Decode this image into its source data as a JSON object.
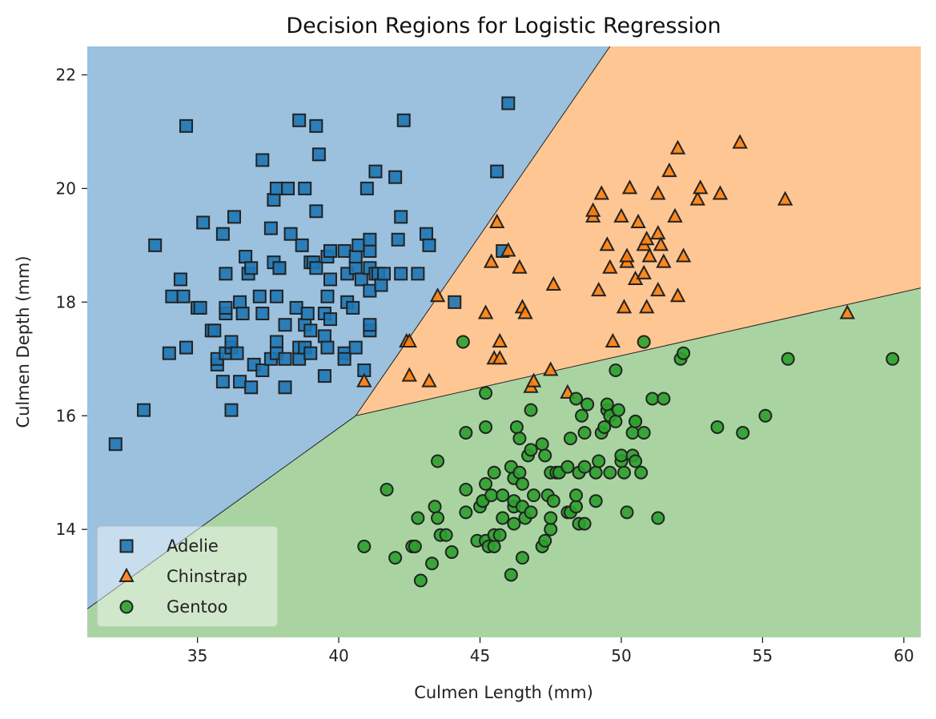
{
  "chart_data": {
    "type": "scatter",
    "title": "Decision Regions for Logistic Regression",
    "xlabel": "Culmen Length (mm)",
    "ylabel": "Culmen Depth (mm)",
    "xlim": [
      31.1,
      60.6
    ],
    "ylim": [
      12.1,
      22.5
    ],
    "xticks": [
      35,
      40,
      45,
      50,
      55,
      60
    ],
    "yticks": [
      14,
      16,
      18,
      20,
      22
    ],
    "grid": false,
    "legend_position": "bottom-left",
    "regions": [
      {
        "class": "Adelie",
        "color": "#9bc1de"
      },
      {
        "class": "Chinstrap",
        "color": "#fec693"
      },
      {
        "class": "Gentoo",
        "color": "#a9d4a2"
      }
    ],
    "boundaries": [
      {
        "between": [
          "Adelie",
          "Gentoo"
        ],
        "points": [
          [
            31.1,
            12.6
          ],
          [
            40.6,
            16.0
          ]
        ]
      },
      {
        "between": [
          "Adelie",
          "Chinstrap"
        ],
        "points": [
          [
            40.6,
            16.0
          ],
          [
            49.6,
            22.5
          ]
        ]
      },
      {
        "between": [
          "Chinstrap",
          "Gentoo"
        ],
        "points": [
          [
            40.6,
            16.0
          ],
          [
            60.6,
            18.25
          ]
        ]
      }
    ],
    "series": [
      {
        "name": "Adelie",
        "marker": "square",
        "color": "#1f77b4",
        "points": [
          [
            32.1,
            15.5
          ],
          [
            33.1,
            16.1
          ],
          [
            33.5,
            19.0
          ],
          [
            34.0,
            17.1
          ],
          [
            34.1,
            18.1
          ],
          [
            34.4,
            18.4
          ],
          [
            34.5,
            18.1
          ],
          [
            34.6,
            17.2
          ],
          [
            34.6,
            21.1
          ],
          [
            35.0,
            17.9
          ],
          [
            35.1,
            17.9
          ],
          [
            35.2,
            19.4
          ],
          [
            35.5,
            17.5
          ],
          [
            35.6,
            17.5
          ],
          [
            35.7,
            16.9
          ],
          [
            35.7,
            17.0
          ],
          [
            35.9,
            16.6
          ],
          [
            35.9,
            19.2
          ],
          [
            36.0,
            17.1
          ],
          [
            36.0,
            17.8
          ],
          [
            36.0,
            17.9
          ],
          [
            36.0,
            18.5
          ],
          [
            36.2,
            16.1
          ],
          [
            36.2,
            17.2
          ],
          [
            36.2,
            17.3
          ],
          [
            36.3,
            19.5
          ],
          [
            36.4,
            17.1
          ],
          [
            36.5,
            16.6
          ],
          [
            36.5,
            18.0
          ],
          [
            36.6,
            17.8
          ],
          [
            36.7,
            18.8
          ],
          [
            36.8,
            18.5
          ],
          [
            36.9,
            18.6
          ],
          [
            36.9,
            16.5
          ],
          [
            37.0,
            16.9
          ],
          [
            37.2,
            18.1
          ],
          [
            37.3,
            16.8
          ],
          [
            37.3,
            17.8
          ],
          [
            37.3,
            20.5
          ],
          [
            37.6,
            19.3
          ],
          [
            37.6,
            17.0
          ],
          [
            37.7,
            18.7
          ],
          [
            37.7,
            19.8
          ],
          [
            37.8,
            17.3
          ],
          [
            37.8,
            18.1
          ],
          [
            37.8,
            20.0
          ],
          [
            37.8,
            17.1
          ],
          [
            37.9,
            18.6
          ],
          [
            37.9,
            18.6
          ],
          [
            38.1,
            16.5
          ],
          [
            38.1,
            17.0
          ],
          [
            38.1,
            17.6
          ],
          [
            38.2,
            20.0
          ],
          [
            38.3,
            19.2
          ],
          [
            38.5,
            17.9
          ],
          [
            38.6,
            17.0
          ],
          [
            38.6,
            17.2
          ],
          [
            38.6,
            21.2
          ],
          [
            38.7,
            19.0
          ],
          [
            38.8,
            17.2
          ],
          [
            38.8,
            17.6
          ],
          [
            38.8,
            20.0
          ],
          [
            38.9,
            17.8
          ],
          [
            39.0,
            17.1
          ],
          [
            39.0,
            17.5
          ],
          [
            39.0,
            18.7
          ],
          [
            39.1,
            18.7
          ],
          [
            39.2,
            18.6
          ],
          [
            39.2,
            19.6
          ],
          [
            39.2,
            21.1
          ],
          [
            39.3,
            20.6
          ],
          [
            39.5,
            16.7
          ],
          [
            39.5,
            17.4
          ],
          [
            39.5,
            17.8
          ],
          [
            39.6,
            17.2
          ],
          [
            39.6,
            18.8
          ],
          [
            39.6,
            18.1
          ],
          [
            39.7,
            17.7
          ],
          [
            39.7,
            18.4
          ],
          [
            39.7,
            18.9
          ],
          [
            40.2,
            17.1
          ],
          [
            40.2,
            18.9
          ],
          [
            40.2,
            17.0
          ],
          [
            40.3,
            18.0
          ],
          [
            40.3,
            18.5
          ],
          [
            40.5,
            17.9
          ],
          [
            40.6,
            17.2
          ],
          [
            40.6,
            18.6
          ],
          [
            40.6,
            18.8
          ],
          [
            40.7,
            19.0
          ],
          [
            40.8,
            18.4
          ],
          [
            40.9,
            16.8
          ],
          [
            41.0,
            20.0
          ],
          [
            41.1,
            17.5
          ],
          [
            41.1,
            17.6
          ],
          [
            41.1,
            18.2
          ],
          [
            41.1,
            18.6
          ],
          [
            41.1,
            18.9
          ],
          [
            41.1,
            19.1
          ],
          [
            41.3,
            18.5
          ],
          [
            41.3,
            20.3
          ],
          [
            41.4,
            18.5
          ],
          [
            41.5,
            18.3
          ],
          [
            41.6,
            18.5
          ],
          [
            42.0,
            20.2
          ],
          [
            42.1,
            19.1
          ],
          [
            42.2,
            18.5
          ],
          [
            42.2,
            19.5
          ],
          [
            42.3,
            21.2
          ],
          [
            42.8,
            18.5
          ],
          [
            43.1,
            19.2
          ],
          [
            43.2,
            19.0
          ],
          [
            44.1,
            18.0
          ],
          [
            45.8,
            18.9
          ],
          [
            46.0,
            21.5
          ],
          [
            45.6,
            20.3
          ]
        ]
      },
      {
        "name": "Chinstrap",
        "marker": "triangle",
        "color": "#ff7f0e",
        "points": [
          [
            40.9,
            16.6
          ],
          [
            42.4,
            17.3
          ],
          [
            42.5,
            16.7
          ],
          [
            42.5,
            17.3
          ],
          [
            43.2,
            16.6
          ],
          [
            43.5,
            18.1
          ],
          [
            45.2,
            17.8
          ],
          [
            45.4,
            18.7
          ],
          [
            45.5,
            17.0
          ],
          [
            45.6,
            19.4
          ],
          [
            45.7,
            17.0
          ],
          [
            45.7,
            17.3
          ],
          [
            46.0,
            18.9
          ],
          [
            46.4,
            18.6
          ],
          [
            46.5,
            17.9
          ],
          [
            46.6,
            17.8
          ],
          [
            46.8,
            16.5
          ],
          [
            46.9,
            16.6
          ],
          [
            47.5,
            16.8
          ],
          [
            47.6,
            18.3
          ],
          [
            48.1,
            16.4
          ],
          [
            49.0,
            19.5
          ],
          [
            49.0,
            19.6
          ],
          [
            49.2,
            18.2
          ],
          [
            49.3,
            19.9
          ],
          [
            49.5,
            19.0
          ],
          [
            49.6,
            18.6
          ],
          [
            49.7,
            17.3
          ],
          [
            50.0,
            19.5
          ],
          [
            50.1,
            17.9
          ],
          [
            50.2,
            18.7
          ],
          [
            50.2,
            18.8
          ],
          [
            50.3,
            20.0
          ],
          [
            50.5,
            18.4
          ],
          [
            50.6,
            19.4
          ],
          [
            50.8,
            18.5
          ],
          [
            50.8,
            19.0
          ],
          [
            50.9,
            17.9
          ],
          [
            50.9,
            19.1
          ],
          [
            51.0,
            18.8
          ],
          [
            51.3,
            18.2
          ],
          [
            51.3,
            19.2
          ],
          [
            51.3,
            19.9
          ],
          [
            51.4,
            19.0
          ],
          [
            51.5,
            18.7
          ],
          [
            51.7,
            20.3
          ],
          [
            51.9,
            19.5
          ],
          [
            52.0,
            18.1
          ],
          [
            52.0,
            20.7
          ],
          [
            52.2,
            18.8
          ],
          [
            52.7,
            19.8
          ],
          [
            52.8,
            20.0
          ],
          [
            53.5,
            19.9
          ],
          [
            54.2,
            20.8
          ],
          [
            55.8,
            19.8
          ],
          [
            58.0,
            17.8
          ]
        ]
      },
      {
        "name": "Gentoo",
        "marker": "circle",
        "color": "#2ca02c",
        "points": [
          [
            40.9,
            13.7
          ],
          [
            41.7,
            14.7
          ],
          [
            42.0,
            13.5
          ],
          [
            42.6,
            13.7
          ],
          [
            42.7,
            13.7
          ],
          [
            42.8,
            14.2
          ],
          [
            42.9,
            13.1
          ],
          [
            43.3,
            13.4
          ],
          [
            43.4,
            14.4
          ],
          [
            43.5,
            14.2
          ],
          [
            43.5,
            15.2
          ],
          [
            43.6,
            13.9
          ],
          [
            43.8,
            13.9
          ],
          [
            44.0,
            13.6
          ],
          [
            44.4,
            17.3
          ],
          [
            44.5,
            14.3
          ],
          [
            44.5,
            14.7
          ],
          [
            44.5,
            15.7
          ],
          [
            44.9,
            13.8
          ],
          [
            45.0,
            14.4
          ],
          [
            45.1,
            14.5
          ],
          [
            45.1,
            14.5
          ],
          [
            45.2,
            13.8
          ],
          [
            45.2,
            14.8
          ],
          [
            45.2,
            15.8
          ],
          [
            45.2,
            16.4
          ],
          [
            45.3,
            13.7
          ],
          [
            45.4,
            14.6
          ],
          [
            45.5,
            13.7
          ],
          [
            45.5,
            13.9
          ],
          [
            45.5,
            15.0
          ],
          [
            45.7,
            13.9
          ],
          [
            45.8,
            14.2
          ],
          [
            45.8,
            14.6
          ],
          [
            46.1,
            13.2
          ],
          [
            46.1,
            15.1
          ],
          [
            46.2,
            14.1
          ],
          [
            46.2,
            14.4
          ],
          [
            46.2,
            14.5
          ],
          [
            46.2,
            14.9
          ],
          [
            46.3,
            15.8
          ],
          [
            46.4,
            15.0
          ],
          [
            46.4,
            15.6
          ],
          [
            46.5,
            13.5
          ],
          [
            46.5,
            14.4
          ],
          [
            46.5,
            14.8
          ],
          [
            46.6,
            14.2
          ],
          [
            46.7,
            15.3
          ],
          [
            46.8,
            14.3
          ],
          [
            46.8,
            15.4
          ],
          [
            46.8,
            16.1
          ],
          [
            46.9,
            14.6
          ],
          [
            47.2,
            13.7
          ],
          [
            47.2,
            15.5
          ],
          [
            47.3,
            13.8
          ],
          [
            47.3,
            15.3
          ],
          [
            47.4,
            14.6
          ],
          [
            47.5,
            14.0
          ],
          [
            47.5,
            14.2
          ],
          [
            47.5,
            15.0
          ],
          [
            47.6,
            14.5
          ],
          [
            47.7,
            15.0
          ],
          [
            47.8,
            15.0
          ],
          [
            48.1,
            14.3
          ],
          [
            48.1,
            15.1
          ],
          [
            48.2,
            14.3
          ],
          [
            48.2,
            15.6
          ],
          [
            48.4,
            14.4
          ],
          [
            48.4,
            14.6
          ],
          [
            48.4,
            16.3
          ],
          [
            48.5,
            14.1
          ],
          [
            48.5,
            15.0
          ],
          [
            48.6,
            16.0
          ],
          [
            48.7,
            14.1
          ],
          [
            48.7,
            15.1
          ],
          [
            48.7,
            15.7
          ],
          [
            48.8,
            16.2
          ],
          [
            49.1,
            14.5
          ],
          [
            49.1,
            15.0
          ],
          [
            49.2,
            15.2
          ],
          [
            49.3,
            15.7
          ],
          [
            49.4,
            15.8
          ],
          [
            49.5,
            16.1
          ],
          [
            49.5,
            16.2
          ],
          [
            49.6,
            15.0
          ],
          [
            49.6,
            16.0
          ],
          [
            49.8,
            15.9
          ],
          [
            49.8,
            16.8
          ],
          [
            49.9,
            16.1
          ],
          [
            50.0,
            15.2
          ],
          [
            50.0,
            15.3
          ],
          [
            50.1,
            15.0
          ],
          [
            50.2,
            14.3
          ],
          [
            50.4,
            15.3
          ],
          [
            50.4,
            15.7
          ],
          [
            50.5,
            15.2
          ],
          [
            50.5,
            15.9
          ],
          [
            50.5,
            15.9
          ],
          [
            50.7,
            15.0
          ],
          [
            50.8,
            15.7
          ],
          [
            50.8,
            17.3
          ],
          [
            51.1,
            16.3
          ],
          [
            51.3,
            14.2
          ],
          [
            51.5,
            16.3
          ],
          [
            52.1,
            17.0
          ],
          [
            52.2,
            17.1
          ],
          [
            53.4,
            15.8
          ],
          [
            54.3,
            15.7
          ],
          [
            55.1,
            16.0
          ],
          [
            55.9,
            17.0
          ],
          [
            59.6,
            17.0
          ]
        ]
      }
    ]
  }
}
